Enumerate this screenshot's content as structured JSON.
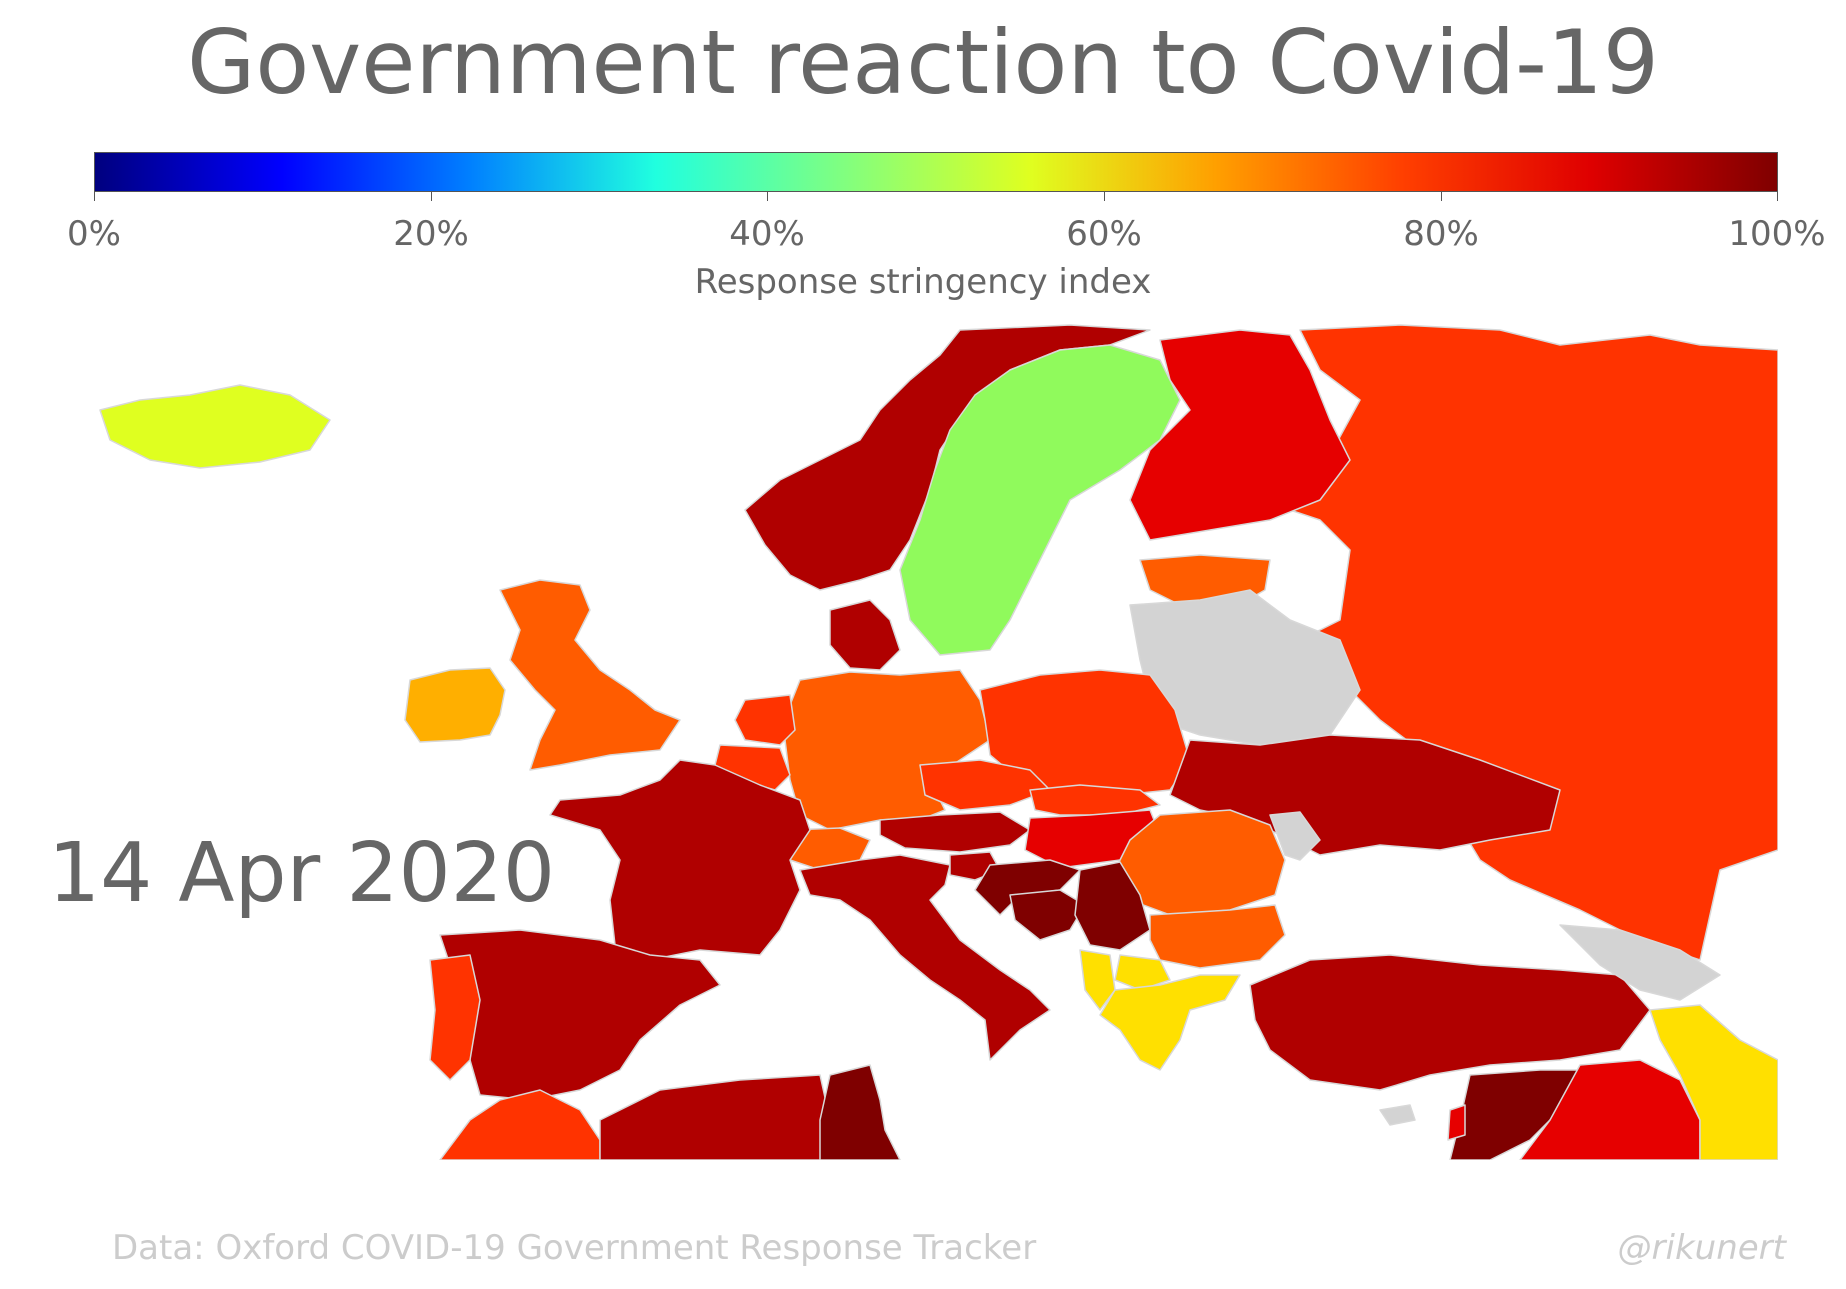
{
  "title": "Government reaction to Covid-19",
  "colorbar": {
    "label": "Response stringency index",
    "ticks": [
      "0%",
      "20%",
      "40%",
      "60%",
      "80%",
      "100%"
    ],
    "colors": [
      "#00007f",
      "#0000ff",
      "#007fff",
      "#20ffdf",
      "#80ff80",
      "#dfff20",
      "#ff9f00",
      "#ff3f00",
      "#df0000",
      "#7f0000"
    ]
  },
  "date": "14 Apr 2020",
  "source": "Data: Oxford COVID-19 Government Response Tracker",
  "credit": "@rikunert",
  "map": {
    "no_data_color": "#d3d3d3",
    "countries": [
      {
        "name": "Iceland",
        "color": "#dfff20"
      },
      {
        "name": "Norway",
        "color": "#b00000"
      },
      {
        "name": "Sweden",
        "color": "#90fa5c"
      },
      {
        "name": "Finland",
        "color": "#e60000"
      },
      {
        "name": "Russia",
        "color": "#ff3300"
      },
      {
        "name": "Estonia",
        "color": "#ff5c00"
      },
      {
        "name": "Belarus",
        "color": "#d3d3d3"
      },
      {
        "name": "United Kingdom",
        "color": "#ff5c00"
      },
      {
        "name": "Ireland",
        "color": "#ffaf00"
      },
      {
        "name": "Denmark",
        "color": "#b00000"
      },
      {
        "name": "Netherlands",
        "color": "#ff3300"
      },
      {
        "name": "Belgium",
        "color": "#ff3300"
      },
      {
        "name": "Germany",
        "color": "#ff5c00"
      },
      {
        "name": "Poland",
        "color": "#ff3300"
      },
      {
        "name": "Ukraine",
        "color": "#b00000"
      },
      {
        "name": "Czechia",
        "color": "#ff3300"
      },
      {
        "name": "Slovakia",
        "color": "#ff3300"
      },
      {
        "name": "Austria",
        "color": "#b00000"
      },
      {
        "name": "Switzerland",
        "color": "#ff5c00"
      },
      {
        "name": "Hungary",
        "color": "#e60000"
      },
      {
        "name": "Romania",
        "color": "#ff5c00"
      },
      {
        "name": "Moldova",
        "color": "#d3d3d3"
      },
      {
        "name": "France",
        "color": "#b00000"
      },
      {
        "name": "Italy",
        "color": "#b00000"
      },
      {
        "name": "Slovenia",
        "color": "#b00000"
      },
      {
        "name": "Croatia",
        "color": "#7f0000"
      },
      {
        "name": "Bosnia and Herzegovina",
        "color": "#7f0000"
      },
      {
        "name": "Serbia",
        "color": "#7f0000"
      },
      {
        "name": "Bulgaria",
        "color": "#ff5c00"
      },
      {
        "name": "North Macedonia",
        "color": "#ffe000"
      },
      {
        "name": "Albania",
        "color": "#ffe000"
      },
      {
        "name": "Greece",
        "color": "#ffe000"
      },
      {
        "name": "Turkey",
        "color": "#b00000"
      },
      {
        "name": "Spain",
        "color": "#b00000"
      },
      {
        "name": "Portugal",
        "color": "#ff3300"
      },
      {
        "name": "Morocco",
        "color": "#ff3300"
      },
      {
        "name": "Algeria",
        "color": "#b00000"
      },
      {
        "name": "Tunisia",
        "color": "#7f0000"
      },
      {
        "name": "Syria",
        "color": "#7f0000"
      },
      {
        "name": "Iraq",
        "color": "#e60000"
      },
      {
        "name": "Iran",
        "color": "#ffe000"
      },
      {
        "name": "Georgia",
        "color": "#d3d3d3"
      },
      {
        "name": "Cyprus",
        "color": "#d3d3d3"
      },
      {
        "name": "Lebanon",
        "color": "#e60000"
      }
    ]
  }
}
